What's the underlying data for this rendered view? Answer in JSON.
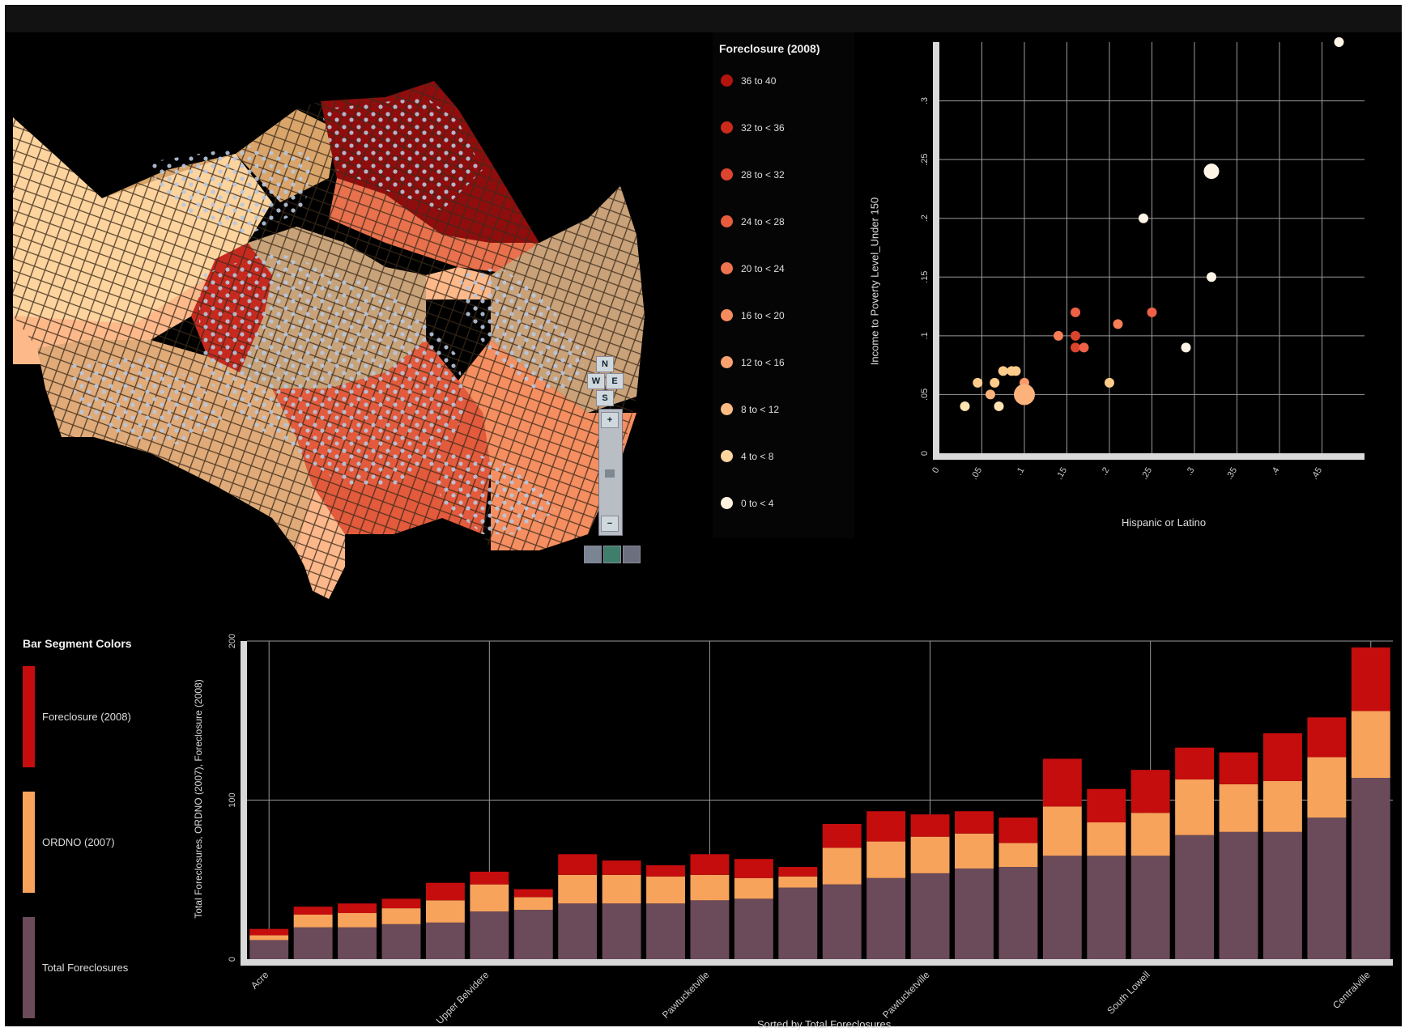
{
  "colors": {
    "background": "#000000",
    "grid": "#9a9a9a",
    "axis_bar": "#d9d9d9",
    "foreclosure": "#c50d0d",
    "ordno": "#f7a35c",
    "total": "#6b4a5a",
    "bubble_scale": [
      "#fff5e6",
      "#fde3b1",
      "#fdcc8a",
      "#fcb27a",
      "#fc9a6a",
      "#f77e55",
      "#ee6146",
      "#d8442e",
      "#bd2517",
      "#8f0d0d"
    ]
  },
  "map": {
    "nav": {
      "north": "N",
      "west": "W",
      "east": "E",
      "south": "S"
    },
    "zoom_in": "+",
    "zoom_out": "−",
    "tools": [
      "hand-tool-icon",
      "select-tool-icon",
      "zoom-box-icon"
    ]
  },
  "map_legend": {
    "title": "Foreclosure (2008)",
    "items": [
      {
        "label": "36 to 40",
        "color": "#b3140d"
      },
      {
        "label": "32 to < 36",
        "color": "#cc2a1a"
      },
      {
        "label": "28 to < 32",
        "color": "#dd4530"
      },
      {
        "label": "24 to < 28",
        "color": "#e75b3e"
      },
      {
        "label": "20 to < 24",
        "color": "#f07350"
      },
      {
        "label": "16 to < 20",
        "color": "#f68b60"
      },
      {
        "label": "12 to < 16",
        "color": "#f9a270"
      },
      {
        "label": "8 to < 12",
        "color": "#fbbb83"
      },
      {
        "label": "4 to < 8",
        "color": "#fdd59f"
      },
      {
        "label": "0 to < 4",
        "color": "#fff3df"
      }
    ]
  },
  "bar_legend": {
    "title": "Bar Segment Colors",
    "items": [
      {
        "label": "Foreclosure (2008)",
        "color": "#c50d0d"
      },
      {
        "label": "ORDNO (2007)",
        "color": "#f7a35c"
      },
      {
        "label": "Total Foreclosures",
        "color": "#6b4a5a"
      }
    ]
  },
  "chart_data": [
    {
      "type": "scatter",
      "xlabel": "Hispanic or Latino",
      "ylabel": "Income to Poverty Level_Under 150",
      "xlim": [
        0,
        0.5
      ],
      "ylim": [
        0,
        0.35
      ],
      "x_ticks": [
        "0",
        ".05",
        ".1",
        ".15",
        ".2",
        ".25",
        ".3",
        ".35",
        ".4",
        ".45"
      ],
      "y_ticks": [
        "0",
        ".05",
        ".1",
        ".15",
        ".2",
        ".25",
        ".3"
      ],
      "points": [
        {
          "x": 0.47,
          "y": 0.35,
          "size": 1,
          "foreclosure": 2
        },
        {
          "x": 0.32,
          "y": 0.24,
          "size": 2,
          "foreclosure": 2
        },
        {
          "x": 0.24,
          "y": 0.2,
          "size": 1,
          "foreclosure": 2
        },
        {
          "x": 0.32,
          "y": 0.15,
          "size": 1,
          "foreclosure": 2
        },
        {
          "x": 0.29,
          "y": 0.09,
          "size": 1,
          "foreclosure": 3
        },
        {
          "x": 0.2,
          "y": 0.06,
          "size": 1,
          "foreclosure": 11
        },
        {
          "x": 0.25,
          "y": 0.12,
          "size": 1,
          "foreclosure": 26
        },
        {
          "x": 0.16,
          "y": 0.12,
          "size": 1,
          "foreclosure": 26
        },
        {
          "x": 0.21,
          "y": 0.11,
          "size": 1,
          "foreclosure": 22
        },
        {
          "x": 0.14,
          "y": 0.1,
          "size": 1,
          "foreclosure": 22
        },
        {
          "x": 0.16,
          "y": 0.1,
          "size": 1,
          "foreclosure": 28
        },
        {
          "x": 0.16,
          "y": 0.09,
          "size": 1,
          "foreclosure": 28
        },
        {
          "x": 0.17,
          "y": 0.09,
          "size": 1,
          "foreclosure": 25
        },
        {
          "x": 0.03,
          "y": 0.04,
          "size": 1,
          "foreclosure": 6
        },
        {
          "x": 0.045,
          "y": 0.06,
          "size": 1,
          "foreclosure": 10
        },
        {
          "x": 0.06,
          "y": 0.05,
          "size": 1,
          "foreclosure": 13
        },
        {
          "x": 0.065,
          "y": 0.06,
          "size": 1,
          "foreclosure": 10
        },
        {
          "x": 0.07,
          "y": 0.04,
          "size": 1,
          "foreclosure": 6
        },
        {
          "x": 0.075,
          "y": 0.07,
          "size": 1,
          "foreclosure": 9
        },
        {
          "x": 0.085,
          "y": 0.07,
          "size": 1,
          "foreclosure": 9
        },
        {
          "x": 0.09,
          "y": 0.07,
          "size": 1,
          "foreclosure": 11
        },
        {
          "x": 0.1,
          "y": 0.06,
          "size": 1,
          "foreclosure": 16
        },
        {
          "x": 0.1,
          "y": 0.05,
          "size": 3,
          "foreclosure": 12
        }
      ]
    },
    {
      "type": "bar",
      "stacked": true,
      "xlabel": "Sorted by Total Foreclosures",
      "ylabel": "Total Foreclosures, ORDNO (2007), Foreclosure (2008)",
      "ylim": [
        0,
        200
      ],
      "y_ticks": [
        "0",
        "100",
        "200"
      ],
      "x_tick_labels": [
        {
          "index": 0,
          "label": "Acre"
        },
        {
          "index": 5,
          "label": "Upper Belvidere"
        },
        {
          "index": 10,
          "label": "Pawtucketville"
        },
        {
          "index": 15,
          "label": "Pawtucketville"
        },
        {
          "index": 20,
          "label": "South Lowell"
        },
        {
          "index": 25,
          "label": "Centralville"
        }
      ],
      "series": [
        {
          "name": "Total Foreclosures",
          "values": [
            12,
            20,
            20,
            22,
            23,
            30,
            31,
            35,
            35,
            35,
            37,
            38,
            45,
            47,
            51,
            54,
            57,
            58,
            65,
            65,
            65,
            78,
            80,
            80,
            89,
            114
          ]
        },
        {
          "name": "ORDNO (2007)",
          "values": [
            3,
            8,
            9,
            10,
            14,
            17,
            8,
            18,
            18,
            17,
            16,
            13,
            7,
            23,
            23,
            23,
            22,
            15,
            31,
            21,
            27,
            35,
            30,
            32,
            38,
            42
          ]
        },
        {
          "name": "Foreclosure (2008)",
          "values": [
            4,
            5,
            6,
            6,
            11,
            8,
            5,
            13,
            9,
            7,
            13,
            12,
            6,
            15,
            19,
            14,
            14,
            16,
            30,
            21,
            27,
            20,
            20,
            30,
            25,
            40
          ]
        }
      ]
    }
  ]
}
